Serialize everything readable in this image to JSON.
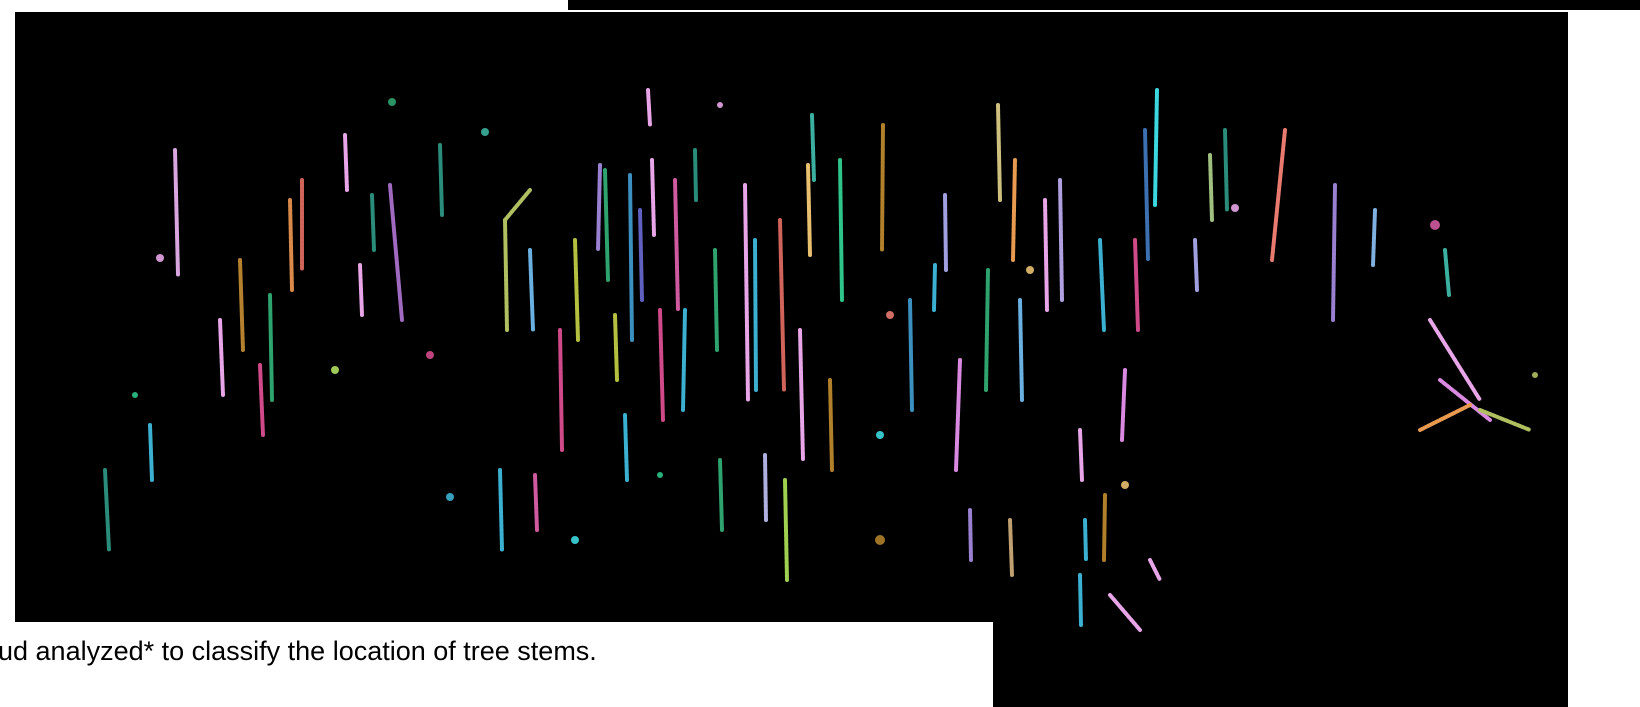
{
  "caption": "ud analyzed* to classify the location of tree stems."
}
